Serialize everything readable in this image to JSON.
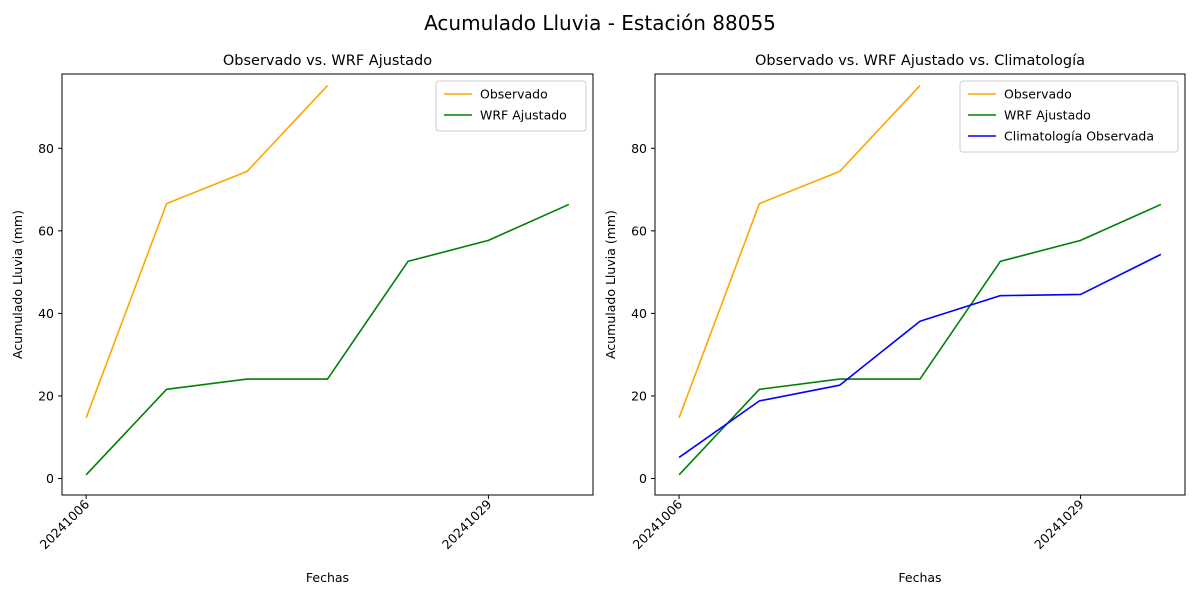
{
  "figure": {
    "suptitle": "Acumulado Lluvia - Estación 88055"
  },
  "colors": {
    "observado": "#ffa500",
    "wrf": "#008000",
    "clima": "#0000ff"
  },
  "chart_data": [
    {
      "type": "line",
      "title": "Observado vs. WRF Ajustado",
      "xlabel": "Fechas",
      "ylabel": "Acumulado Lluvia (mm)",
      "x": [
        0,
        1,
        2,
        3,
        4,
        5,
        6
      ],
      "xticks": [
        {
          "x": 0,
          "label": "20241006"
        },
        {
          "x": 5,
          "label": "20241029"
        }
      ],
      "yticks": [
        0,
        20,
        40,
        60,
        80
      ],
      "ylim": [
        -4,
        98
      ],
      "xlim": [
        -0.3,
        6.3
      ],
      "legend_position": "upper right",
      "series": [
        {
          "name": "Observado",
          "color": "#ffa500",
          "x": [
            0,
            1,
            2,
            3
          ],
          "values": [
            14.7,
            66.6,
            74.4,
            95.2
          ]
        },
        {
          "name": "WRF Ajustado",
          "color": "#008000",
          "x": [
            0,
            1,
            2,
            3,
            4,
            5,
            6
          ],
          "values": [
            0.9,
            21.6,
            24.1,
            24.1,
            52.6,
            57.7,
            66.4
          ]
        }
      ]
    },
    {
      "type": "line",
      "title": "Observado vs. WRF Ajustado vs. Climatología",
      "xlabel": "Fechas",
      "ylabel": "Acumulado Lluvia (mm)",
      "x": [
        0,
        1,
        2,
        3,
        4,
        5,
        6
      ],
      "xticks": [
        {
          "x": 0,
          "label": "20241006"
        },
        {
          "x": 5,
          "label": "20241029"
        }
      ],
      "yticks": [
        0,
        20,
        40,
        60,
        80
      ],
      "ylim": [
        -4,
        98
      ],
      "xlim": [
        -0.3,
        6.3
      ],
      "legend_position": "upper right",
      "series": [
        {
          "name": "Observado",
          "color": "#ffa500",
          "x": [
            0,
            1,
            2,
            3
          ],
          "values": [
            14.7,
            66.6,
            74.4,
            95.2
          ]
        },
        {
          "name": "WRF Ajustado",
          "color": "#008000",
          "x": [
            0,
            1,
            2,
            3,
            4,
            5,
            6
          ],
          "values": [
            0.9,
            21.6,
            24.1,
            24.1,
            52.6,
            57.7,
            66.4
          ]
        },
        {
          "name": "Climatología Observada",
          "color": "#0000ff",
          "x": [
            0,
            1,
            2,
            3,
            4,
            5,
            6
          ],
          "values": [
            5.1,
            18.8,
            22.6,
            38.1,
            44.3,
            44.6,
            54.3
          ]
        }
      ]
    }
  ]
}
